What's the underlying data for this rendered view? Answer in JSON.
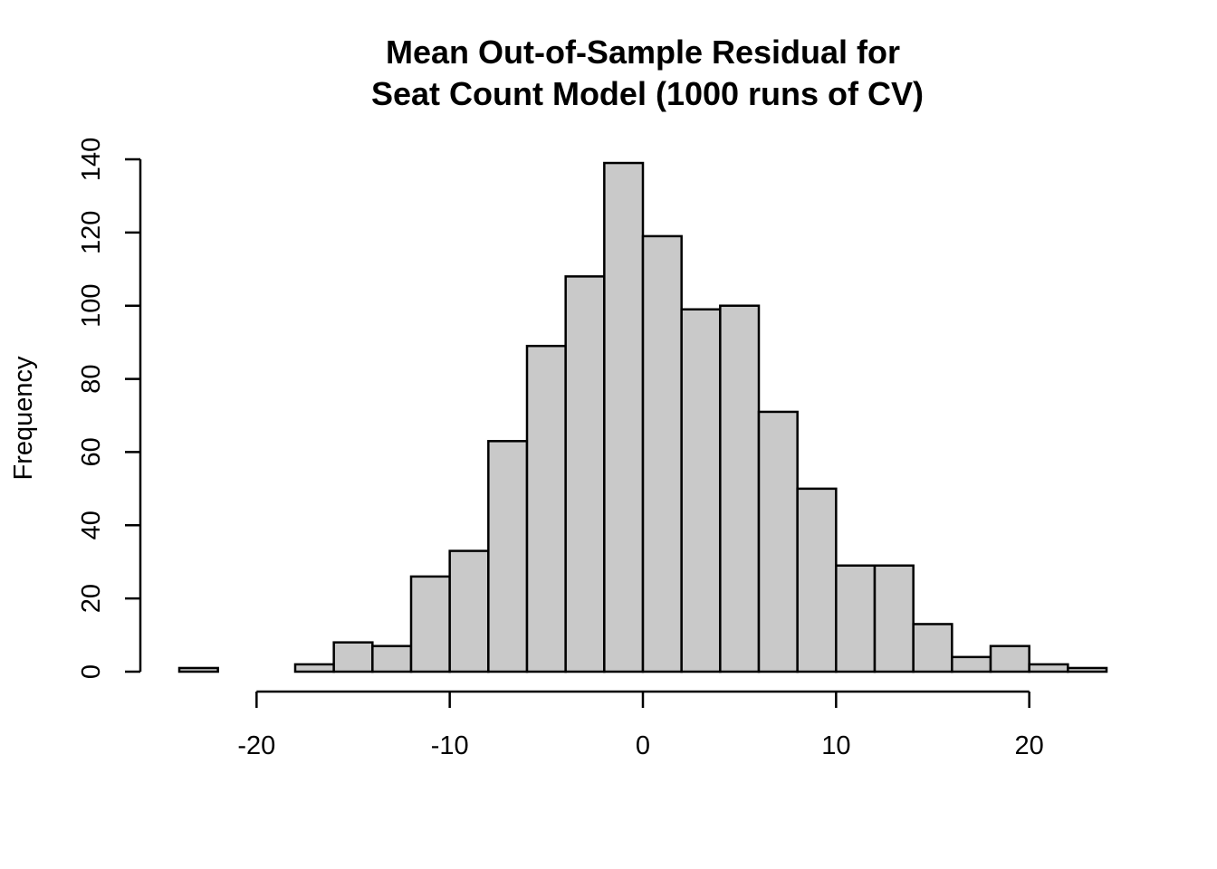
{
  "chart_data": {
    "type": "bar",
    "title_line1": "Mean Out-of-Sample Residual for",
    "title_line2": "Seat Count Model (1000 runs of CV)",
    "xlabel": "",
    "ylabel": "Frequency",
    "bin_edges": [
      -24,
      -22,
      -20,
      -18,
      -16,
      -14,
      -12,
      -10,
      -8,
      -6,
      -4,
      -2,
      0,
      2,
      4,
      6,
      8,
      10,
      12,
      14,
      16,
      18,
      20,
      22,
      24
    ],
    "values": [
      1,
      0,
      0,
      2,
      8,
      7,
      26,
      33,
      63,
      89,
      108,
      139,
      119,
      99,
      100,
      71,
      50,
      29,
      29,
      13,
      4,
      7,
      2,
      1
    ],
    "xlim": [
      -24,
      24
    ],
    "ylim": [
      0,
      140
    ],
    "x_ticks": [
      -20,
      -10,
      0,
      10,
      20
    ],
    "x_tick_labels": [
      "-20",
      "-10",
      "0",
      "10",
      "20"
    ],
    "y_ticks": [
      0,
      20,
      40,
      60,
      80,
      100,
      120,
      140
    ],
    "y_tick_labels": [
      "0",
      "20",
      "40",
      "60",
      "80",
      "100",
      "120",
      "140"
    ],
    "grid": false,
    "bar_color": "#c9c9c9",
    "edge_color": "#000000"
  }
}
